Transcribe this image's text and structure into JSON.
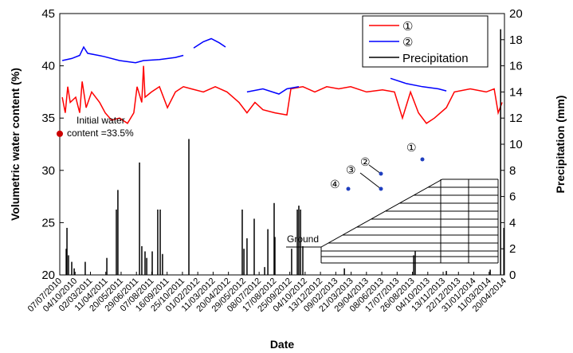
{
  "chart_data": {
    "type": "line-bar",
    "xlabel": "Date",
    "ylabel": "Volumetric water content (%)",
    "y2label": "Precipitation (mm)",
    "xlim": [
      0,
      29
    ],
    "xticks": [
      {
        "value": 0,
        "label": "07/07/2010"
      },
      {
        "value": 1,
        "label": "04/10/2010"
      },
      {
        "value": 2,
        "label": "02/03/2011"
      },
      {
        "value": 3,
        "label": "11/04/2011"
      },
      {
        "value": 4,
        "label": "20/05/2011"
      },
      {
        "value": 5,
        "label": "29/06/2011"
      },
      {
        "value": 6,
        "label": "07/08/2011"
      },
      {
        "value": 7,
        "label": "16/09/2011"
      },
      {
        "value": 8,
        "label": "25/10/2011"
      },
      {
        "value": 9,
        "label": "01/02/2012"
      },
      {
        "value": 10,
        "label": "11/03/2012"
      },
      {
        "value": 11,
        "label": "20/04/2012"
      },
      {
        "value": 12,
        "label": "29/05/2012"
      },
      {
        "value": 13,
        "label": "08/07/2012"
      },
      {
        "value": 14,
        "label": "17/08/2012"
      },
      {
        "value": 15,
        "label": "25/09/2012"
      },
      {
        "value": 16,
        "label": "04/10/2012"
      },
      {
        "value": 17,
        "label": "13/12/2012"
      },
      {
        "value": 18,
        "label": "09/02/2013"
      },
      {
        "value": 19,
        "label": "21/03/2013"
      },
      {
        "value": 20,
        "label": "29/04/2013"
      },
      {
        "value": 21,
        "label": "08/06/2013"
      },
      {
        "value": 22,
        "label": "17/07/2013"
      },
      {
        "value": 23,
        "label": "26/08/2013"
      },
      {
        "value": 24,
        "label": "04/10/2013"
      },
      {
        "value": 25,
        "label": "13/11/2013"
      },
      {
        "value": 26,
        "label": "22/12/2013"
      },
      {
        "value": 27,
        "label": "31/01/2014"
      },
      {
        "value": 28,
        "label": "11/03/2014"
      },
      {
        "value": 29,
        "label": "20/04/2014"
      }
    ],
    "ylim": [
      20,
      45
    ],
    "yticks": [
      20,
      25,
      30,
      35,
      40,
      45
    ],
    "y2lim": [
      0,
      20
    ],
    "y2ticks": [
      0,
      2,
      4,
      6,
      8,
      10,
      12,
      14,
      16,
      18,
      20
    ],
    "legend": "upper right",
    "series": [
      {
        "name": "①",
        "color": "#ff0000",
        "kind": "line",
        "x": [
          0.16,
          0.36,
          0.52,
          0.68,
          1.04,
          1.3,
          1.46,
          1.72,
          2.08,
          2.6,
          2.96,
          3.38,
          3.9,
          4.42,
          4.83,
          5.04,
          5.35,
          5.46,
          5.56,
          5.98,
          6.5,
          7.02,
          7.54,
          8.06,
          8.58,
          9.36,
          10.14,
          10.91,
          11.69,
          12.21,
          12.73,
          13.25,
          14.03,
          14.81,
          15.07,
          15.85,
          16.63,
          17.41,
          18.19,
          18.97,
          20.01,
          21.05,
          21.83,
          22.35,
          22.87,
          23.39,
          23.91,
          24.43,
          25.21,
          25.73,
          26.77,
          27.81,
          28.33,
          28.59,
          28.85
        ],
        "values": [
          37,
          35.5,
          38,
          36.5,
          37,
          35.5,
          38.5,
          36,
          37.5,
          36.5,
          35.5,
          34.8,
          35,
          34.5,
          35.5,
          38,
          36.5,
          40,
          37,
          37.5,
          38,
          36,
          37.5,
          38,
          37.8,
          37.5,
          38,
          37.5,
          36.5,
          35.5,
          36.5,
          35.8,
          35.5,
          35.3,
          37.8,
          38,
          37.5,
          38,
          37.8,
          38,
          37.5,
          37.7,
          37.5,
          35,
          37.5,
          35.5,
          34.5,
          35,
          36,
          37.5,
          37.8,
          37.5,
          37.8,
          35.5,
          36.5
        ]
      },
      {
        "name": "②",
        "color": "#0000ff",
        "kind": "line",
        "x": [
          0.16,
          0.78,
          1.3,
          1.56,
          1.82,
          2.86,
          3.9,
          4.94,
          5.46,
          6.5,
          7.54,
          8.06,
          null,
          8.73,
          9.36,
          9.88,
          10.4,
          10.81,
          null,
          12.21,
          13.25,
          14.29,
          14.81,
          15.59,
          null,
          21.57,
          22.61,
          23.65,
          24.69,
          25.21
        ],
        "values": [
          40.5,
          40.7,
          41,
          41.8,
          41.2,
          40.9,
          40.5,
          40.3,
          40.5,
          40.6,
          40.8,
          41,
          null,
          41.7,
          42.3,
          42.6,
          42.2,
          41.8,
          null,
          37.5,
          37.8,
          37.3,
          37.8,
          38,
          null,
          38.8,
          38.3,
          38,
          37.8,
          37.6
        ]
      },
      {
        "name": "Precipitation",
        "color": "#000000",
        "kind": "bar",
        "axis": "y2",
        "x": [
          0.42,
          0.47,
          0.57,
          0.78,
          0.94,
          1.66,
          3.07,
          3.69,
          3.79,
          5.2,
          5.35,
          5.56,
          5.67,
          6.03,
          6.39,
          6.55,
          6.7,
          8.42,
          11.9,
          12.01,
          12.21,
          12.68,
          13.36,
          13.57,
          13.98,
          14.03,
          15.12,
          15.49,
          15.59,
          15.7,
          15.85,
          18.56,
          23.08,
          23.18,
          25.21,
          28.07,
          28.75,
          28.96
        ],
        "values": [
          2,
          3.6,
          1.5,
          1,
          0.5,
          1,
          1.3,
          5,
          6.5,
          8.6,
          2.2,
          1.8,
          1.3,
          1.8,
          5,
          5,
          1.6,
          10.4,
          5,
          2,
          2.8,
          4.3,
          0.6,
          3.5,
          5.5,
          2.9,
          2,
          5,
          5.3,
          5,
          2.2,
          0.5,
          1.5,
          1.8,
          0.3,
          0.4,
          18.8,
          3.6
        ]
      }
    ],
    "initial_point": {
      "x": 0,
      "y": 33.5,
      "color": "#cc0000",
      "label": [
        "Initial water",
        "content =33.5%"
      ]
    },
    "inset": {
      "ground": "Ground",
      "sensors": [
        "①",
        "②",
        "③",
        "④"
      ]
    }
  }
}
